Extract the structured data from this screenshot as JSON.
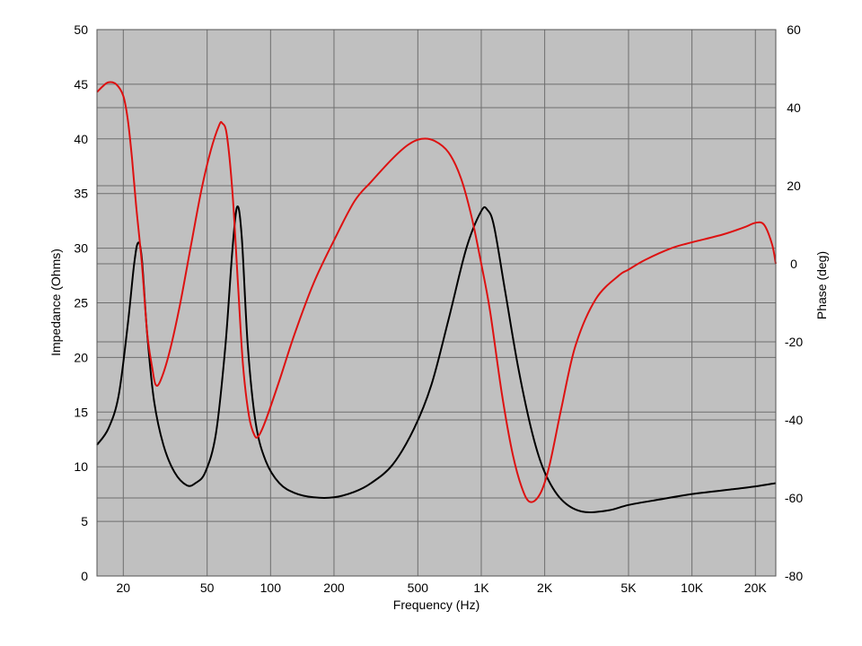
{
  "chart_data": {
    "type": "line",
    "title": "",
    "xlabel": "Frequency (Hz)",
    "ylabel": "Impedance (Ohms)",
    "y2label": "Phase (deg)",
    "xscale": "log",
    "xlim": [
      15,
      25000
    ],
    "ylim": [
      0,
      50
    ],
    "y2lim": [
      -80,
      60
    ],
    "grid": true,
    "legend": "none",
    "plot_background": "#c0c0c0",
    "grid_color": "#6e6e6e",
    "x_ticks": [
      {
        "value": 20,
        "label": "20"
      },
      {
        "value": 50,
        "label": "50"
      },
      {
        "value": 100,
        "label": "100"
      },
      {
        "value": 200,
        "label": "200"
      },
      {
        "value": 500,
        "label": "500"
      },
      {
        "value": 1000,
        "label": "1K"
      },
      {
        "value": 2000,
        "label": "2K"
      },
      {
        "value": 5000,
        "label": "5K"
      },
      {
        "value": 10000,
        "label": "10K"
      },
      {
        "value": 20000,
        "label": "20K"
      }
    ],
    "y_ticks": [
      "0",
      "5",
      "10",
      "15",
      "20",
      "25",
      "30",
      "35",
      "40",
      "45",
      "50"
    ],
    "y2_ticks": [
      "-80",
      "-60",
      "-40",
      "-20",
      "0",
      "20",
      "40",
      "60"
    ],
    "series": [
      {
        "axis": "left",
        "color": "#000000",
        "points": [
          [
            15,
            12
          ],
          [
            17,
            13.5
          ],
          [
            19,
            16.5
          ],
          [
            21,
            23
          ],
          [
            22.5,
            28.5
          ],
          [
            23.5,
            30.5
          ],
          [
            24.5,
            29
          ],
          [
            26,
            22
          ],
          [
            28,
            16
          ],
          [
            31,
            12
          ],
          [
            35,
            9.5
          ],
          [
            40,
            8.3
          ],
          [
            44,
            8.5
          ],
          [
            49,
            9.5
          ],
          [
            55,
            13
          ],
          [
            61,
            21
          ],
          [
            66,
            30
          ],
          [
            69.5,
            33.8
          ],
          [
            73,
            31
          ],
          [
            78,
            21
          ],
          [
            85,
            14
          ],
          [
            95,
            10.5
          ],
          [
            110,
            8.5
          ],
          [
            130,
            7.6
          ],
          [
            160,
            7.2
          ],
          [
            200,
            7.2
          ],
          [
            250,
            7.7
          ],
          [
            300,
            8.5
          ],
          [
            380,
            10.2
          ],
          [
            480,
            13.5
          ],
          [
            580,
            17.5
          ],
          [
            700,
            23.5
          ],
          [
            850,
            30
          ],
          [
            1000,
            33.4
          ],
          [
            1070,
            33.5
          ],
          [
            1150,
            32
          ],
          [
            1300,
            26
          ],
          [
            1500,
            19
          ],
          [
            1750,
            13
          ],
          [
            2000,
            9.5
          ],
          [
            2400,
            7
          ],
          [
            3000,
            5.9
          ],
          [
            4000,
            6
          ],
          [
            5000,
            6.5
          ],
          [
            7000,
            7
          ],
          [
            10000,
            7.5
          ],
          [
            15000,
            7.9
          ],
          [
            20000,
            8.2
          ],
          [
            25000,
            8.5
          ]
        ]
      },
      {
        "axis": "right",
        "color": "#dd1111",
        "points": [
          [
            15,
            44
          ],
          [
            16,
            45.5
          ],
          [
            17,
            46.5
          ],
          [
            18.5,
            46
          ],
          [
            20,
            43
          ],
          [
            21,
            37
          ],
          [
            22,
            27
          ],
          [
            23,
            15
          ],
          [
            24.5,
            0
          ],
          [
            26,
            -18
          ],
          [
            27.5,
            -27
          ],
          [
            28.5,
            -31
          ],
          [
            30,
            -30
          ],
          [
            33,
            -23
          ],
          [
            37,
            -11
          ],
          [
            42,
            5
          ],
          [
            47,
            19
          ],
          [
            52,
            29
          ],
          [
            57,
            35.5
          ],
          [
            59,
            36
          ],
          [
            62,
            33
          ],
          [
            66,
            18
          ],
          [
            70,
            -5
          ],
          [
            74,
            -26
          ],
          [
            79,
            -39
          ],
          [
            84,
            -44
          ],
          [
            88,
            -44
          ],
          [
            95,
            -40
          ],
          [
            110,
            -30
          ],
          [
            130,
            -18
          ],
          [
            160,
            -5
          ],
          [
            200,
            6
          ],
          [
            250,
            16
          ],
          [
            300,
            21
          ],
          [
            380,
            27
          ],
          [
            450,
            30.5
          ],
          [
            520,
            32
          ],
          [
            600,
            31.5
          ],
          [
            700,
            28.5
          ],
          [
            800,
            22
          ],
          [
            900,
            12
          ],
          [
            1000,
            0
          ],
          [
            1100,
            -12
          ],
          [
            1250,
            -33
          ],
          [
            1400,
            -48
          ],
          [
            1550,
            -57
          ],
          [
            1700,
            -61
          ],
          [
            1900,
            -59
          ],
          [
            2100,
            -52
          ],
          [
            2400,
            -37
          ],
          [
            2800,
            -21
          ],
          [
            3500,
            -9
          ],
          [
            4500,
            -3
          ],
          [
            5000,
            -1.5
          ],
          [
            6000,
            1
          ],
          [
            8000,
            4
          ],
          [
            10000,
            5.5
          ],
          [
            14000,
            7.5
          ],
          [
            18000,
            9.5
          ],
          [
            20000,
            10.5
          ],
          [
            22000,
            10
          ],
          [
            24000,
            5
          ],
          [
            25000,
            0
          ]
        ]
      }
    ]
  }
}
